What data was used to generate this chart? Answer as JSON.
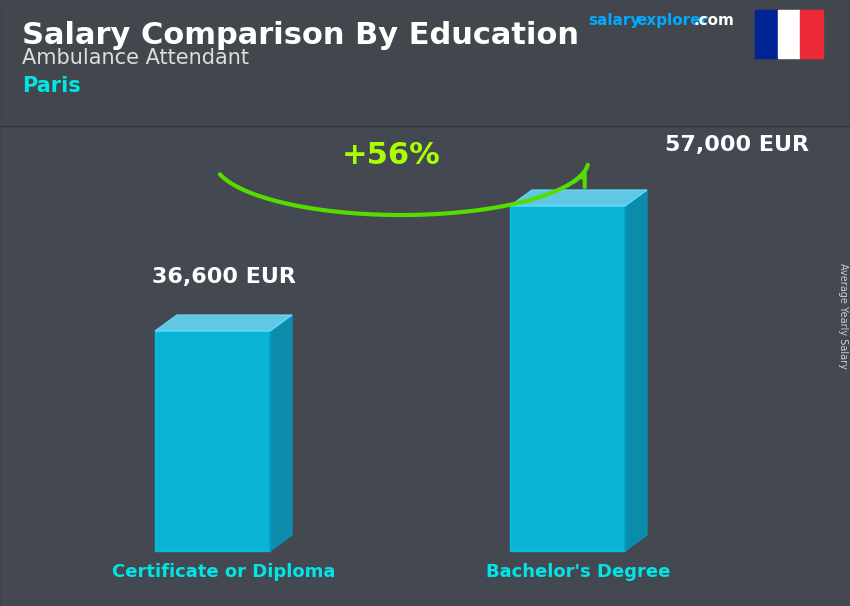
{
  "title_part1": "Salary Comparison By Education",
  "subtitle": "Ambulance Attendant",
  "city": "Paris",
  "brand_salary": "salary",
  "brand_explorer": "explorer",
  "brand_com": ".com",
  "side_label": "Average Yearly Salary",
  "categories": [
    "Certificate or Diploma",
    "Bachelor's Degree"
  ],
  "values": [
    36600,
    57000
  ],
  "value_labels": [
    "36,600 EUR",
    "57,000 EUR"
  ],
  "pct_change": "+56%",
  "bar_color_front": "#00C8F0",
  "bar_color_right": "#0099BB",
  "bar_color_top": "#66DFFF",
  "title_color": "#FFFFFF",
  "subtitle_color": "#DDDDDD",
  "city_color": "#00E5E5",
  "category_color": "#00E5E5",
  "value_color": "#FFFFFF",
  "pct_color": "#AAFF00",
  "arrow_color": "#55DD00",
  "bg_color": "#5a6068",
  "overlay_color": "#3a3f45",
  "salary_label_color": "#CCCCCC",
  "flag_blue": "#002395",
  "flag_white": "#FFFFFF",
  "flag_red": "#ED2939",
  "brand_salary_color": "#00AAFF",
  "brand_com_color": "#FFFFFF"
}
